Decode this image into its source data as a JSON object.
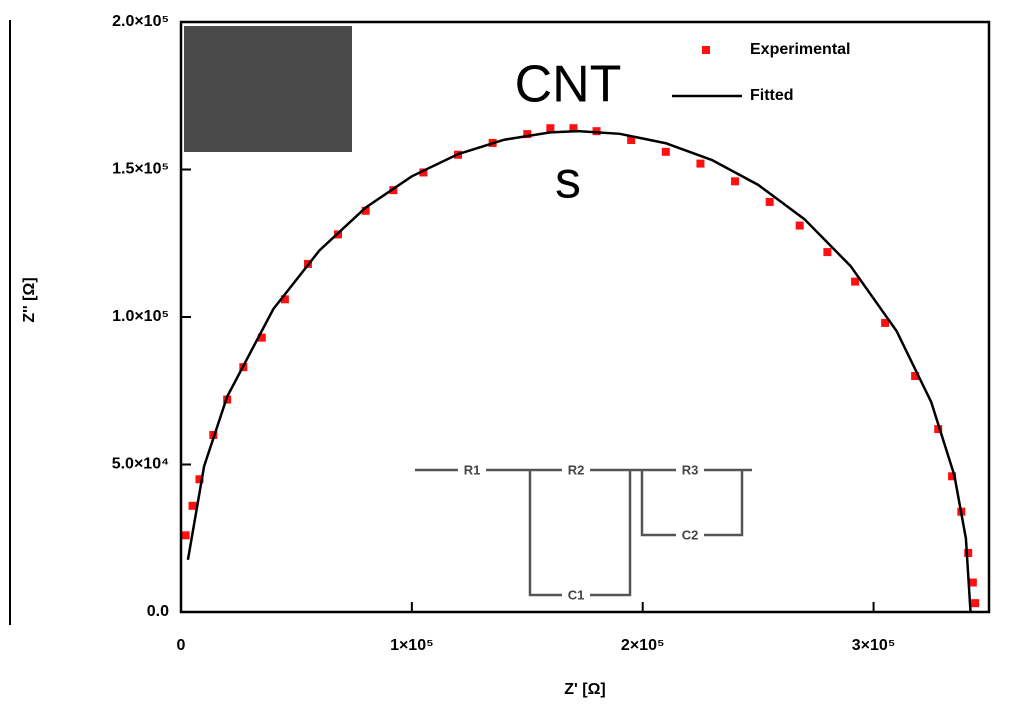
{
  "chart_data": {
    "type": "scatter",
    "x_label": "Z' [Ω]",
    "y_label": "Z'' [Ω]",
    "annotations": [
      "CNT",
      "s"
    ],
    "circuit_labels": [
      "R1",
      "R2",
      "C1",
      "R3",
      "C2"
    ],
    "xlim": [
      0,
      350000
    ],
    "ylim": [
      0,
      200000
    ],
    "xticks": [
      0,
      {
        "value": 100000,
        "label": "1×10⁵"
      },
      {
        "value": 200000,
        "label": "2×10⁵"
      },
      {
        "value": 300000,
        "label": "3×10⁵"
      }
    ],
    "yticks": [
      {
        "value": 0,
        "label": "0.0"
      },
      {
        "value": 50000,
        "label": "5.0×10⁴"
      },
      {
        "value": 100000,
        "label": "1.0×10⁵"
      },
      {
        "value": 150000,
        "label": "1.5×10⁵"
      },
      {
        "value": 200000,
        "label": "2.0×10⁵"
      }
    ],
    "legend": "top-right",
    "series": [
      {
        "name": "Experimental",
        "color": "#ff1010",
        "mode": "markers",
        "x": [
          2000,
          5000,
          8000,
          14000,
          20000,
          27000,
          35000,
          45000,
          55000,
          68000,
          80000,
          92000,
          105000,
          120000,
          135000,
          150000,
          160000,
          170000,
          180000,
          195000,
          210000,
          225000,
          240000,
          255000,
          268000,
          280000,
          292000,
          305000,
          318000,
          328000,
          334000,
          338000,
          341000,
          343000,
          344000
        ],
        "values": [
          26000,
          36000,
          45000,
          60000,
          72000,
          83000,
          93000,
          106000,
          118000,
          128000,
          136000,
          143000,
          149000,
          155000,
          159000,
          162000,
          164000,
          164000,
          163000,
          160000,
          156000,
          152000,
          146000,
          139000,
          131000,
          122000,
          112000,
          98000,
          80000,
          62000,
          46000,
          34000,
          20000,
          10000,
          3000
        ]
      },
      {
        "name": "Fitted",
        "color": "#000000",
        "mode": "line",
        "x": [
          3000,
          10000,
          20000,
          40000,
          60000,
          80000,
          100000,
          120000,
          140000,
          160000,
          172000,
          190000,
          210000,
          230000,
          250000,
          270000,
          290000,
          310000,
          325000,
          335000,
          340000,
          342000
        ],
        "values": [
          17680,
          49400,
          73000,
          102700,
          122600,
          137100,
          147700,
          155200,
          160100,
          162600,
          163000,
          162100,
          158900,
          153200,
          144800,
          133200,
          117300,
          95200,
          71100,
          46300,
          24900,
          0
        ]
      }
    ]
  }
}
